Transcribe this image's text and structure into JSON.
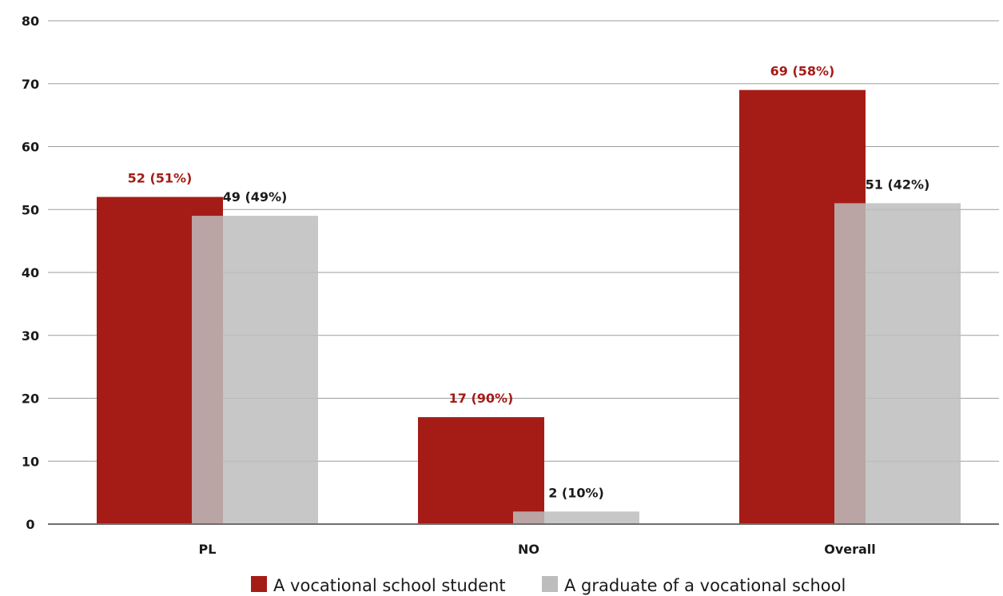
{
  "chart_data": {
    "type": "bar",
    "title": "",
    "xlabel": "",
    "ylabel": "",
    "categories": [
      "PL",
      "NO",
      "Overall"
    ],
    "ylim": [
      0,
      80
    ],
    "yticks": [
      0,
      10,
      20,
      30,
      40,
      50,
      60,
      70,
      80
    ],
    "grid": true,
    "legend_position": "bottom",
    "bars_overlap": true,
    "series": [
      {
        "name": "A vocational school student",
        "color": "#a51c17",
        "label_color": "#a51c17",
        "values": [
          52,
          17,
          69
        ],
        "labels": [
          "52 (51%)",
          "17 (90%)",
          "69 (58%)"
        ]
      },
      {
        "name": "A graduate of a vocational school",
        "color": "#bdbdbd",
        "label_color": "#1a1a1a",
        "opacity": 0.85,
        "values": [
          49,
          2,
          51
        ],
        "labels": [
          "49 (49%)",
          "2 (10%)",
          "51 (42%)"
        ]
      }
    ]
  }
}
